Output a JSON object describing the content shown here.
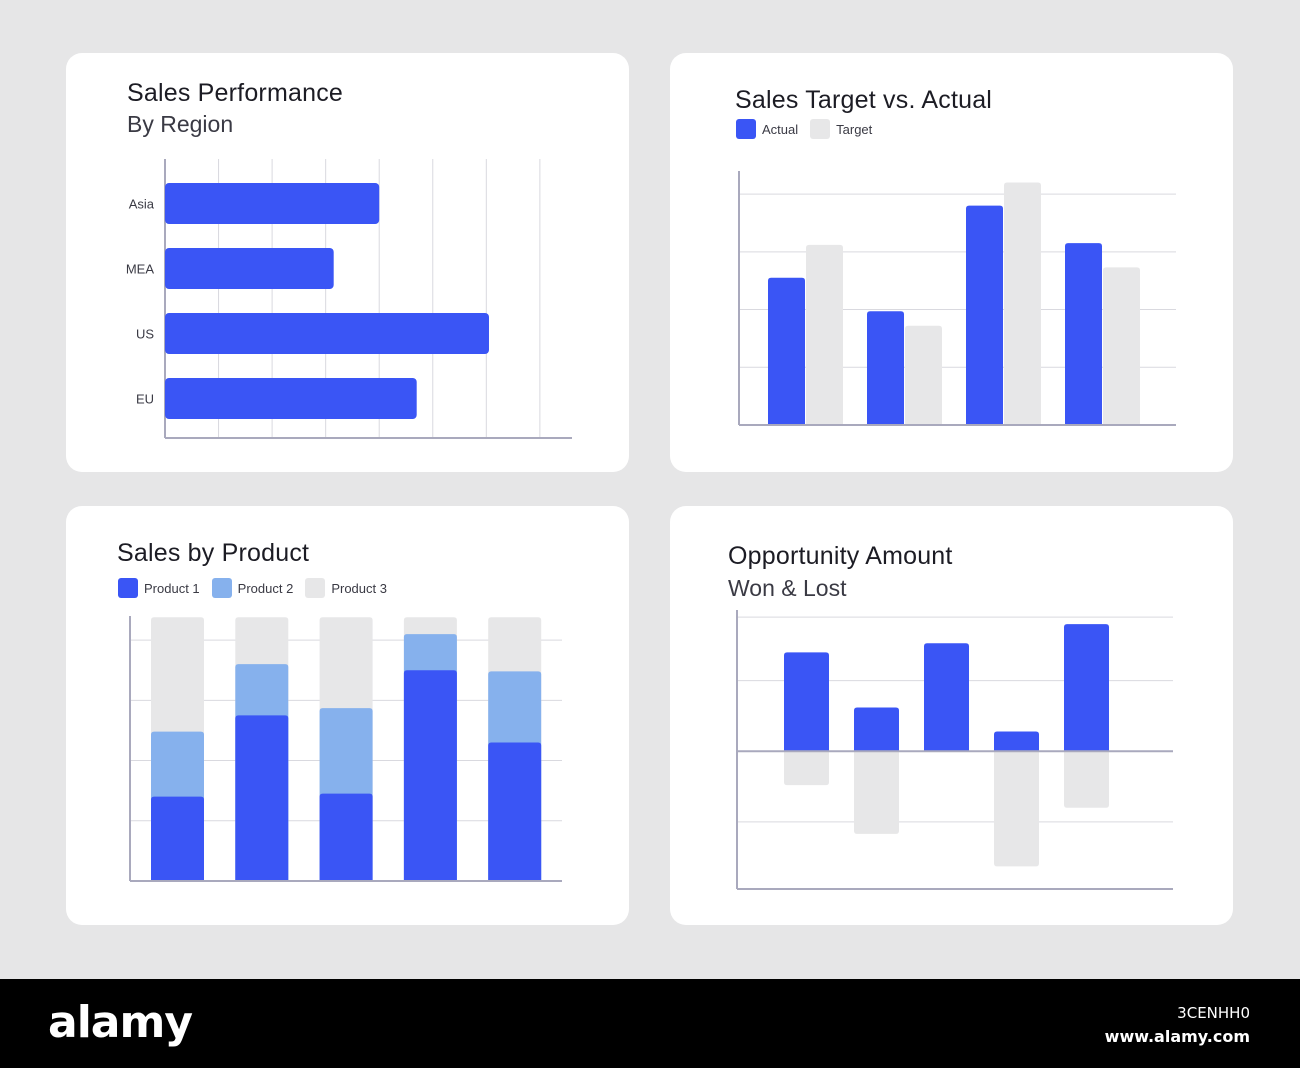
{
  "page": {
    "background": "#e6e6e7"
  },
  "colors": {
    "primary": "#3a55f5",
    "secondary": "#86b1ed",
    "muted": "#e7e7e8",
    "axis": "#a9a9bd",
    "grid": "#d9d9df"
  },
  "cards": {
    "region": {
      "title": "Sales Performance",
      "subtitle": "By Region"
    },
    "target": {
      "title": "Sales Target vs. Actual",
      "legend": [
        {
          "label": "Actual",
          "color": "#3a55f5"
        },
        {
          "label": "Target",
          "color": "#e7e7e8"
        }
      ]
    },
    "product": {
      "title": "Sales by Product",
      "legend": [
        {
          "label": "Product 1",
          "color": "#3a55f5"
        },
        {
          "label": "Product 2",
          "color": "#86b1ed"
        },
        {
          "label": "Product 3",
          "color": "#e7e7e8"
        }
      ]
    },
    "opportunity": {
      "title": "Opportunity Amount",
      "subtitle": "Won & Lost"
    }
  },
  "chart_data": [
    {
      "type": "bar",
      "orientation": "horizontal",
      "title": "Sales Performance",
      "subtitle": "By Region",
      "categories": [
        "Asia",
        "MEA",
        "US",
        "EU"
      ],
      "values": [
        4.0,
        3.15,
        6.05,
        4.7
      ],
      "xlim": [
        0,
        7.6
      ],
      "grid": true,
      "color": "#3a55f5"
    },
    {
      "type": "bar",
      "title": "Sales Target vs. Actual",
      "categories": [
        "",
        "",
        "",
        ""
      ],
      "series": [
        {
          "name": "Actual",
          "values": [
            2.55,
            1.97,
            3.8,
            3.15
          ],
          "color": "#3a55f5"
        },
        {
          "name": "Target",
          "values": [
            3.12,
            1.72,
            4.2,
            2.73
          ],
          "color": "#e7e7e8"
        }
      ],
      "ylim": [
        0,
        4.4
      ],
      "grid": true,
      "legend": "top-left"
    },
    {
      "type": "bar",
      "stacked": true,
      "title": "Sales by Product",
      "categories": [
        "",
        "",
        "",
        "",
        ""
      ],
      "series": [
        {
          "name": "Product 1",
          "values": [
            1.4,
            2.75,
            1.45,
            3.5,
            2.3
          ],
          "color": "#3a55f5"
        },
        {
          "name": "Product 2",
          "values": [
            1.08,
            0.85,
            1.42,
            0.6,
            1.18
          ],
          "color": "#86b1ed"
        },
        {
          "name": "Product 3",
          "values": [
            1.9,
            0.78,
            1.51,
            0.28,
            0.9
          ],
          "color": "#e7e7e8"
        }
      ],
      "ylim": [
        0,
        4.4
      ],
      "grid": true,
      "legend": "top-left"
    },
    {
      "type": "bar",
      "title": "Opportunity Amount",
      "subtitle": "Won & Lost",
      "categories": [
        "",
        "",
        "",
        "",
        ""
      ],
      "series": [
        {
          "name": "Won",
          "values": [
            1.4,
            0.62,
            1.53,
            0.28,
            1.8
          ],
          "color": "#3a55f5"
        },
        {
          "name": "Lost",
          "values": [
            -0.48,
            -1.17,
            0,
            -1.63,
            -0.8
          ],
          "color": "#e7e7e8"
        }
      ],
      "ylim": [
        -1.95,
        2.0
      ],
      "grid": true
    }
  ],
  "footer": {
    "logo": "alamy",
    "image_id": "3CENHH0",
    "url": "www.alamy.com"
  }
}
